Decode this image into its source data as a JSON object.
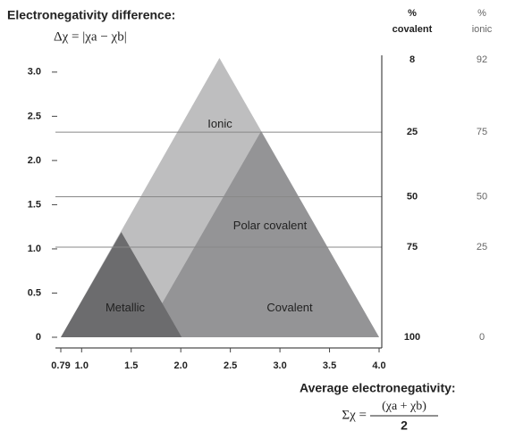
{
  "chart_data": {
    "type": "regions",
    "title": "Electronegativity difference:",
    "y_formula": "Δχ = |χa − χb|",
    "x_title": "Average electronegativity:",
    "x_formula": {
      "lhs": "Σχ =",
      "numerator": "(χa + χb)",
      "denominator": "2"
    },
    "xlim": [
      0.79,
      4.0
    ],
    "xticks": [
      0.79,
      {
        "value": 1,
        "label": "1.0"
      },
      1.5,
      {
        "value": 2,
        "label": "2.0"
      },
      2.5,
      {
        "value": 3,
        "label": "3.0"
      },
      3.5,
      {
        "value": 4,
        "label": "4.0"
      }
    ],
    "ylim": [
      0,
      3.2
    ],
    "yticks": [
      0,
      0.5,
      {
        "value": 1,
        "label": "1.0"
      },
      1.5,
      {
        "value": 2,
        "label": "2.0"
      },
      2.5,
      {
        "value": 3,
        "label": "3.0"
      }
    ],
    "regions": [
      {
        "name": "Ionic",
        "color": "#bebebf",
        "x": [
          0.79,
          2.39,
          4.0
        ],
        "y": [
          0,
          3.16,
          0
        ]
      },
      {
        "name": "Polar covalent",
        "color": "#949496",
        "x": [
          2.81,
          4.0,
          2.01,
          1.81
        ],
        "y": [
          2.33,
          0,
          0,
          0.38
        ]
      },
      {
        "name": "Metallic",
        "color": "#6c6c6e",
        "x": [
          0.79,
          1.4,
          2.01
        ],
        "y": [
          0,
          1.19,
          0
        ]
      }
    ],
    "covalent_region": "Covalent",
    "right_scale": {
      "headers": [
        [
          "%",
          "covalent"
        ],
        [
          "%",
          "ionic"
        ]
      ],
      "y": [
        3.14,
        2.32,
        1.59,
        1.02,
        0
      ],
      "covalent": [
        8,
        25,
        50,
        75,
        100
      ],
      "ionic": [
        92,
        75,
        50,
        25,
        0
      ]
    }
  }
}
